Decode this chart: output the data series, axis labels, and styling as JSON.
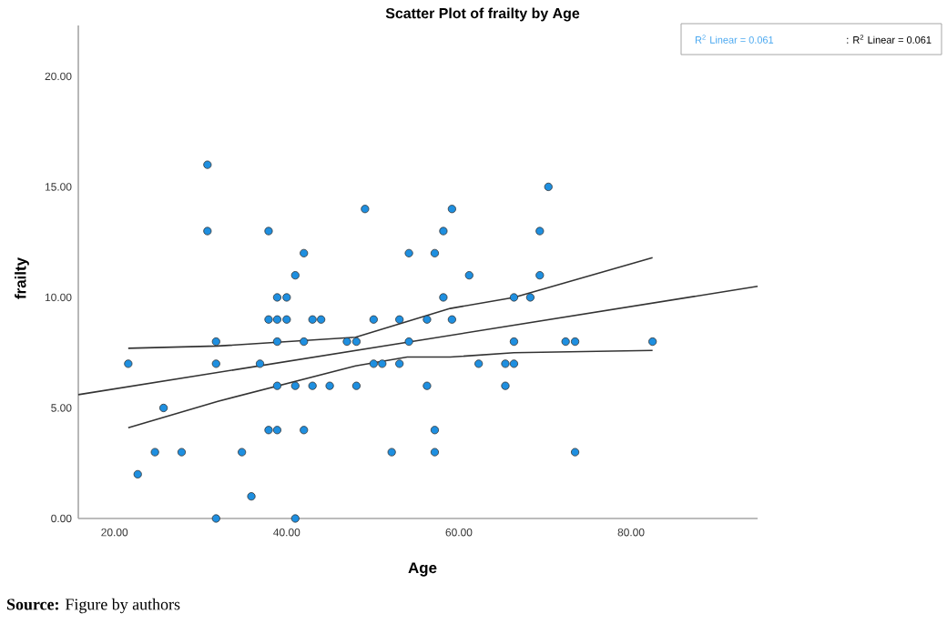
{
  "chart_data": {
    "type": "scatter",
    "title": "Scatter Plot of frailty by Age",
    "xlabel": "Age",
    "ylabel": "frailty",
    "xlim": [
      15.8,
      94.7
    ],
    "ylim": [
      0,
      22.3
    ],
    "xticks": [
      {
        "value": 20,
        "label": "20.00"
      },
      {
        "value": 40,
        "label": "40.00"
      },
      {
        "value": 60,
        "label": "60.00"
      },
      {
        "value": 80,
        "label": "80.00"
      }
    ],
    "yticks": [
      {
        "value": 0,
        "label": "0.00"
      },
      {
        "value": 5,
        "label": "5.00"
      },
      {
        "value": 10,
        "label": "10.00"
      },
      {
        "value": 15,
        "label": "15.00"
      },
      {
        "value": 20,
        "label": "20.00"
      }
    ],
    "grid": false,
    "series": [
      {
        "color": "#1e8fe0",
        "marker": "circle",
        "x": [
          21.6,
          22.7,
          24.7,
          25.7,
          27.8,
          30.8,
          30.8,
          31.8,
          31.8,
          31.8,
          34.8,
          35.9,
          36.9,
          37.9,
          37.9,
          37.9,
          38.9,
          38.9,
          38.9,
          38.9,
          38.9,
          40,
          40,
          41,
          41,
          41,
          42,
          42,
          42,
          43,
          43,
          44,
          45,
          47,
          48.1,
          48.1,
          49.1,
          50.1,
          50.1,
          51.1,
          52.2,
          53.1,
          53.1,
          54.2,
          54.2,
          56.3,
          56.3,
          57.2,
          57.2,
          57.2,
          58.2,
          58.2,
          59.2,
          59.2,
          61.2,
          62.3,
          65.4,
          65.4,
          66.4,
          66.4,
          66.4,
          68.3,
          69.4,
          69.4,
          70.4,
          72.4,
          73.5,
          73.5,
          82.5
        ],
        "values": [
          7,
          2,
          3,
          5,
          3,
          16,
          13,
          8,
          7,
          0,
          3,
          1,
          7,
          13,
          9,
          4,
          10,
          9,
          8,
          6,
          4,
          10,
          9,
          11,
          6,
          0,
          12,
          8,
          4,
          9,
          6,
          9,
          6,
          8,
          8,
          6,
          14,
          9,
          7,
          7,
          3,
          9,
          7,
          12,
          8,
          9,
          6,
          12,
          4,
          3,
          13,
          10,
          14,
          9,
          11,
          7,
          7,
          6,
          7,
          8,
          10,
          10,
          11,
          13,
          15,
          8,
          8,
          3,
          8
        ]
      },
      {
        "type": "line",
        "color": "#333333",
        "marker": "none",
        "x": [
          15.8,
          94.7
        ],
        "values": [
          5.6,
          10.5
        ]
      },
      {
        "type": "line",
        "color": "#333333",
        "marker": "none",
        "x": [
          21.6,
          32,
          48,
          59,
          66.4,
          82.5
        ],
        "values": [
          7.7,
          7.8,
          8.2,
          9.5,
          10.0,
          11.8
        ]
      },
      {
        "type": "line",
        "color": "#333333",
        "marker": "none",
        "x": [
          21.6,
          32,
          48,
          54,
          59,
          66.4,
          82.5
        ],
        "values": [
          4.1,
          5.3,
          6.9,
          7.3,
          7.3,
          7.5,
          7.6
        ]
      }
    ],
    "annotations": [
      "R$^{2}$ Linear = 0.061",
      ": R$^{2}$ Linear = 0.061",
      "**Source:** Figure by authors"
    ]
  }
}
